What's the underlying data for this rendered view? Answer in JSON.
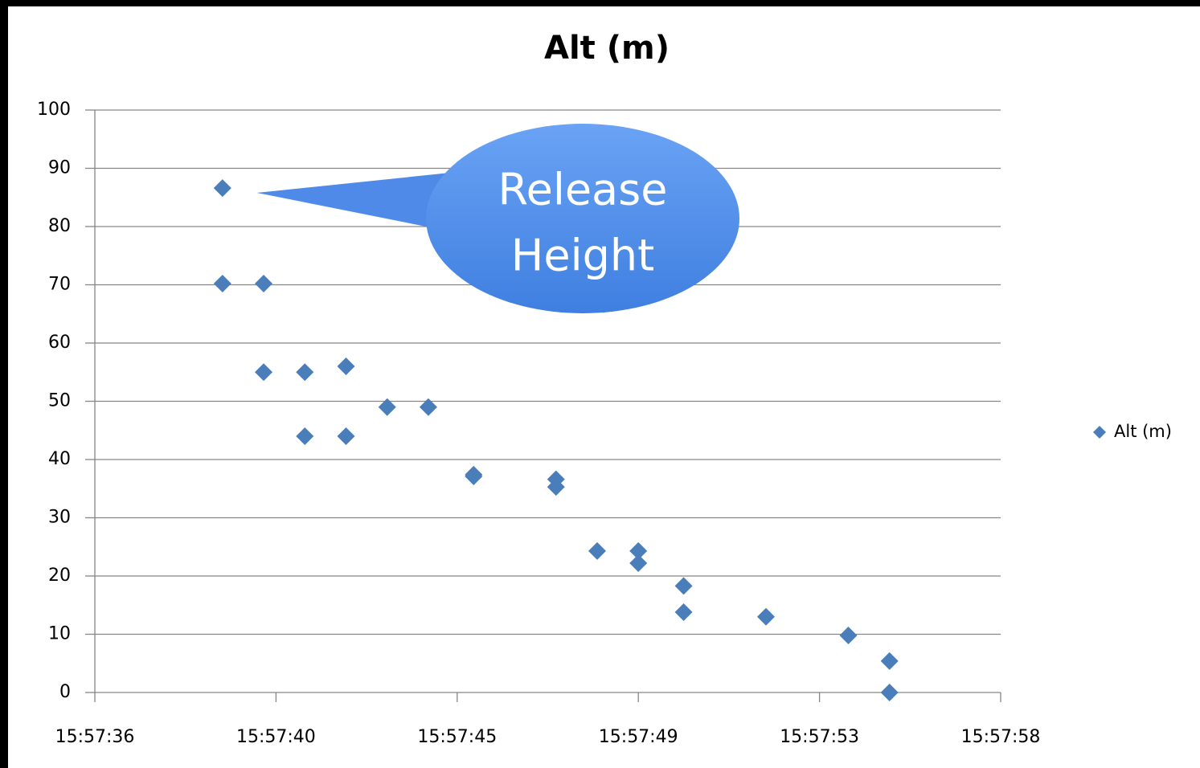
{
  "chart_data": {
    "type": "scatter",
    "title": "Alt (m)",
    "annotation": [
      "Release",
      "Height"
    ],
    "series": [
      {
        "name": "Alt (m)",
        "color": "#4a7ebb",
        "x": [
          38.9,
          38.9,
          39.9,
          39.9,
          40.9,
          40.9,
          41.9,
          41.9,
          42.9,
          43.9,
          45.0,
          45.0,
          47.0,
          47.0,
          48.0,
          49.0,
          49.0,
          50.1,
          50.1,
          52.1,
          54.1,
          55.1,
          55.1
        ],
        "values": [
          86.6,
          70.2,
          70.2,
          55.0,
          55.0,
          44.0,
          56.0,
          44.0,
          49.0,
          49.0,
          37.4,
          37.1,
          36.6,
          35.3,
          24.3,
          24.3,
          22.2,
          18.3,
          13.8,
          13.0,
          9.8,
          5.4,
          0
        ]
      }
    ],
    "xlim": [
      35.8,
      57.8
    ],
    "xticks": [
      {
        "value": 35.8,
        "label": "15:57:36"
      },
      {
        "value": 40.2,
        "label": "15:57:40"
      },
      {
        "value": 44.6,
        "label": "15:57:45"
      },
      {
        "value": 49.0,
        "label": "15:57:49"
      },
      {
        "value": 53.4,
        "label": "15:57:53"
      },
      {
        "value": 57.8,
        "label": "15:57:58"
      }
    ],
    "ylim": [
      0,
      100
    ],
    "yticks": [
      0,
      10,
      20,
      30,
      40,
      50,
      60,
      70,
      80,
      90,
      100
    ],
    "grid": true,
    "legend": "right"
  }
}
